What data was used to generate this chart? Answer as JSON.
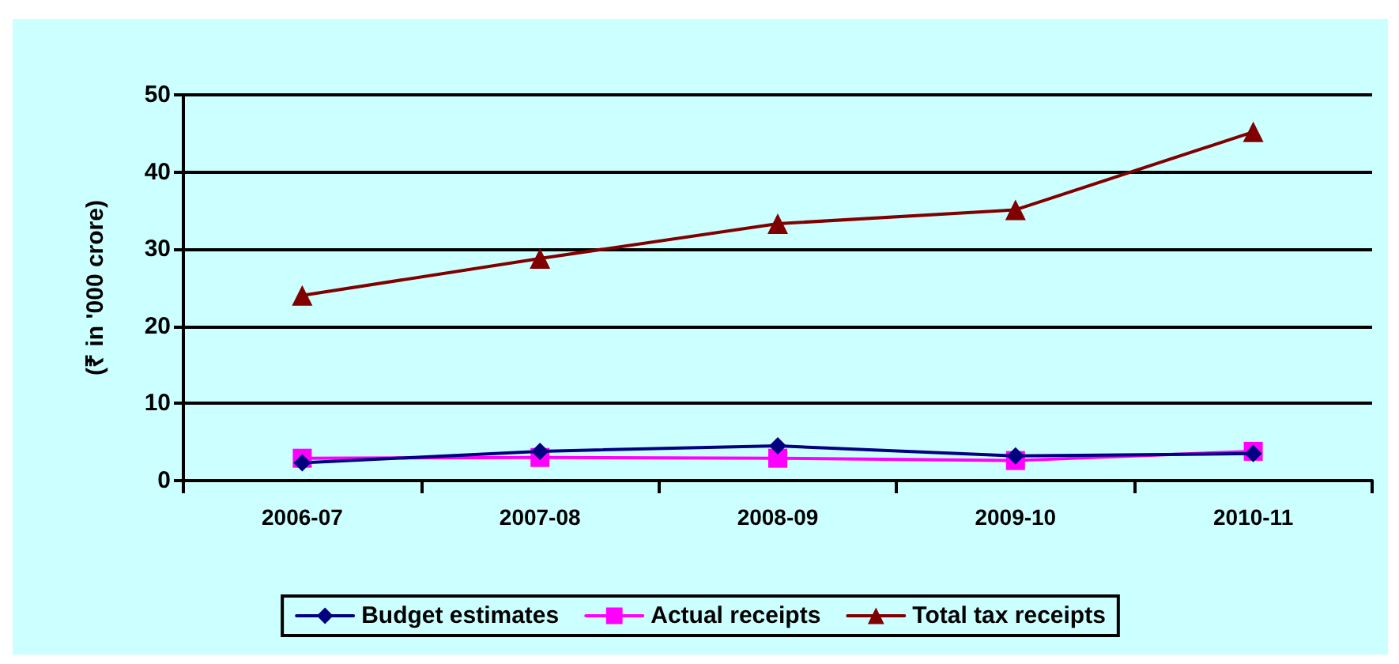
{
  "chart_data": {
    "type": "line",
    "ylabel": "(₹ in '000 crore)",
    "categories": [
      "2006-07",
      "2007-08",
      "2008-09",
      "2009-10",
      "2010-11"
    ],
    "series": [
      {
        "name": "Budget estimates",
        "color": "#000080",
        "marker": "diamond",
        "values": [
          2.3,
          3.8,
          4.5,
          3.2,
          3.5
        ]
      },
      {
        "name": "Actual receipts",
        "color": "#ff00ff",
        "marker": "square",
        "values": [
          2.9,
          3.0,
          2.9,
          2.6,
          3.8
        ]
      },
      {
        "name": "Total tax receipts",
        "color": "#800000",
        "marker": "triangle",
        "values": [
          24,
          28.8,
          33.3,
          35.1,
          45.2
        ]
      }
    ],
    "ylim": [
      0,
      50
    ],
    "yticks": [
      0,
      10,
      20,
      30,
      40,
      50
    ],
    "grid": "y",
    "legend": "bottom",
    "line_style": "solid"
  }
}
